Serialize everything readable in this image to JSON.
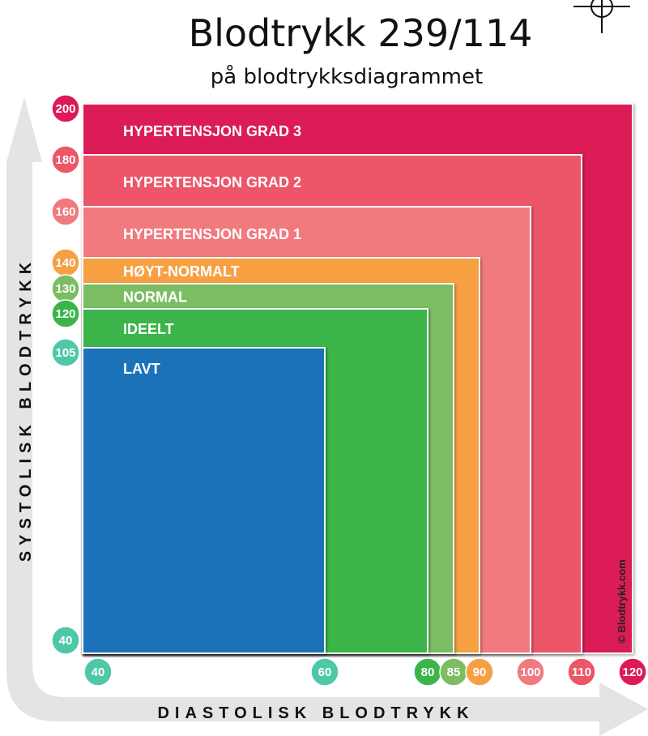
{
  "title": "Blodtrykk 239/114",
  "subtitle": "på blodtrykksdiagrammet",
  "credit": "© Blodtrykk.com",
  "chart_data": {
    "type": "area",
    "xlabel": "DIASTOLISK BLODTRYKK",
    "ylabel": "SYSTOLISK BLODTRYKK",
    "zones": [
      {
        "label": "HYPERTENSJON GRAD 3",
        "systolic_max": 200,
        "diastolic_max": 120,
        "color": "#dc1a57"
      },
      {
        "label": "HYPERTENSJON GRAD 2",
        "systolic_max": 180,
        "diastolic_max": 110,
        "color": "#ec5667"
      },
      {
        "label": "HYPERTENSJON GRAD 1",
        "systolic_max": 160,
        "diastolic_max": 100,
        "color": "#f07a7e"
      },
      {
        "label": "HØYT-NORMALT",
        "systolic_max": 140,
        "diastolic_max": 90,
        "color": "#f6a043"
      },
      {
        "label": "NORMAL",
        "systolic_max": 130,
        "diastolic_max": 85,
        "color": "#7cbd64"
      },
      {
        "label": "IDEELT",
        "systolic_max": 120,
        "diastolic_max": 80,
        "color": "#3bb44a"
      },
      {
        "label": "LAVT",
        "systolic_max": 105,
        "diastolic_max": 60,
        "color": "#1f72b8"
      }
    ],
    "y_ticks": [
      {
        "value": 200,
        "color": "#dc1a57"
      },
      {
        "value": 180,
        "color": "#ec5667"
      },
      {
        "value": 160,
        "color": "#f07a7e"
      },
      {
        "value": 140,
        "color": "#f6a043"
      },
      {
        "value": 130,
        "color": "#7cbd64"
      },
      {
        "value": 120,
        "color": "#3bb44a"
      },
      {
        "value": 105,
        "color": "#4fc7a9"
      },
      {
        "value": 40,
        "color": "#4fc7a9"
      }
    ],
    "x_ticks": [
      {
        "value": 40,
        "color": "#4fc7a9"
      },
      {
        "value": 60,
        "color": "#4fc7a9"
      },
      {
        "value": 80,
        "color": "#3bb44a"
      },
      {
        "value": 85,
        "color": "#7cbd64"
      },
      {
        "value": 90,
        "color": "#f6a043"
      },
      {
        "value": 100,
        "color": "#f07a7e"
      },
      {
        "value": 110,
        "color": "#ec5667"
      },
      {
        "value": 120,
        "color": "#dc1a57"
      }
    ],
    "reading": {
      "systolic": 239,
      "diastolic": 114
    }
  }
}
